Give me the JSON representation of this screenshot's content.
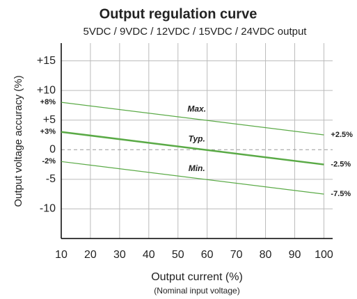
{
  "chart_data": {
    "type": "line",
    "title": "Output regulation curve",
    "subtitle": "5VDC / 9VDC / 12VDC / 15VDC / 24VDC output",
    "x_label": "Output current (%)",
    "x_sublabel": "(Nominal input voltage)",
    "y_label": "Output voltage accuracy (%)",
    "title_color": "#4fa83d",
    "x": [
      10,
      100
    ],
    "series": [
      {
        "name": "Max.",
        "color": "#5aaa46",
        "line_width": 1.2,
        "values": [
          8,
          2.5
        ],
        "value_labels": [
          "+8%",
          "+2.5%"
        ]
      },
      {
        "name": "Typ.",
        "color": "#5aaa46",
        "line_width": 2.5,
        "values": [
          3,
          -2.5
        ],
        "value_labels": [
          "+3%",
          "-2.5%"
        ]
      },
      {
        "name": "Min.",
        "color": "#5aaa46",
        "line_width": 1.2,
        "values": [
          -2,
          -7.5
        ],
        "value_labels": [
          "-2%",
          "-7.5%"
        ]
      }
    ],
    "xlim": [
      10,
      103
    ],
    "ylim": [
      -15,
      18
    ],
    "xticks": [
      10,
      20,
      30,
      40,
      50,
      60,
      70,
      80,
      90,
      100
    ],
    "yticks": [
      {
        "value": 15,
        "label": "+15"
      },
      {
        "value": 10,
        "label": "+10"
      },
      {
        "value": 5,
        "label": "+5"
      },
      0,
      -5,
      -10
    ],
    "grid": true,
    "zero_line": "dashed"
  }
}
